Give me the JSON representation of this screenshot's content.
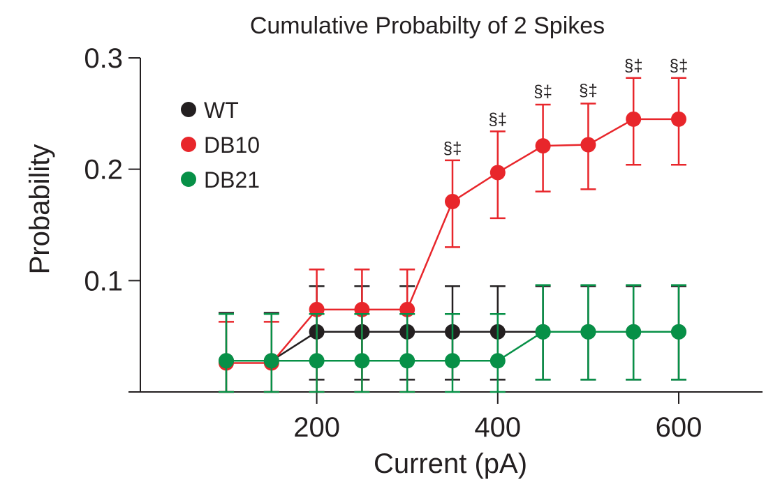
{
  "chart_data": {
    "type": "line",
    "title": "Cumulative Probabilty of 2 Spikes",
    "xlabel": "Current (pA)",
    "ylabel": "Probability",
    "xlim": [
      0,
      700
    ],
    "ylim": [
      0,
      0.3
    ],
    "x_ticks": [
      200,
      400,
      600
    ],
    "x_tick_labels": [
      "200",
      "400",
      "600"
    ],
    "y_ticks": [
      0.1,
      0.2,
      0.3
    ],
    "y_tick_labels": [
      "0.1",
      "0.2",
      "0.3"
    ],
    "grid": false,
    "legend_position": "top-left",
    "x": [
      100,
      150,
      200,
      250,
      300,
      350,
      400,
      450,
      500,
      550,
      600
    ],
    "series": [
      {
        "name": "WT",
        "color": "#231f20",
        "values": [
          0.028,
          0.028,
          0.054,
          0.054,
          0.054,
          0.054,
          0.054,
          0.054,
          0.054,
          0.054,
          0.054
        ],
        "err_lo": [
          0.028,
          0.028,
          0.043,
          0.043,
          0.043,
          0.043,
          0.043,
          0.043,
          0.043,
          0.043,
          0.043
        ],
        "err_hi": [
          0.043,
          0.043,
          0.041,
          0.041,
          0.041,
          0.041,
          0.041,
          0.041,
          0.041,
          0.041,
          0.041
        ]
      },
      {
        "name": "DB10",
        "color": "#e8262b",
        "values": [
          0.026,
          0.026,
          0.074,
          0.074,
          0.074,
          0.171,
          0.197,
          0.221,
          0.222,
          0.245,
          0.245
        ],
        "err_lo": [
          0.026,
          0.026,
          0.074,
          0.074,
          0.074,
          0.041,
          0.041,
          0.041,
          0.04,
          0.041,
          0.041
        ],
        "err_hi": [
          0.037,
          0.037,
          0.036,
          0.036,
          0.036,
          0.037,
          0.037,
          0.037,
          0.037,
          0.037,
          0.037
        ]
      },
      {
        "name": "DB21",
        "color": "#079047",
        "values": [
          0.028,
          0.028,
          0.028,
          0.028,
          0.028,
          0.028,
          0.028,
          0.054,
          0.054,
          0.054,
          0.054
        ],
        "err_lo": [
          0.028,
          0.028,
          0.028,
          0.028,
          0.028,
          0.028,
          0.028,
          0.043,
          0.043,
          0.043,
          0.043
        ],
        "err_hi": [
          0.042,
          0.042,
          0.042,
          0.042,
          0.042,
          0.042,
          0.042,
          0.042,
          0.042,
          0.042,
          0.042
        ]
      }
    ],
    "annotations": [
      {
        "x": 350,
        "y": 0.214,
        "text": "§‡"
      },
      {
        "x": 400,
        "y": 0.24,
        "text": "§‡"
      },
      {
        "x": 450,
        "y": 0.265,
        "text": "§‡"
      },
      {
        "x": 500,
        "y": 0.266,
        "text": "§‡"
      },
      {
        "x": 550,
        "y": 0.288,
        "text": "§‡"
      },
      {
        "x": 600,
        "y": 0.288,
        "text": "§‡"
      }
    ]
  }
}
